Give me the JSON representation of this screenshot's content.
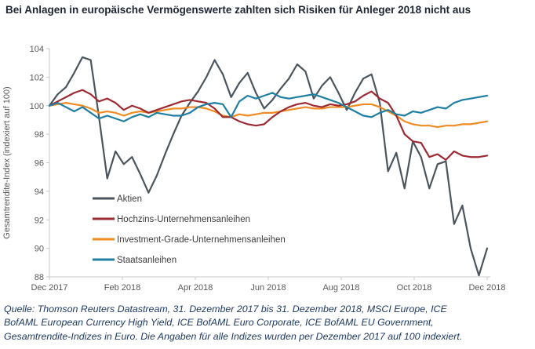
{
  "title": "Bei Anlagen in europäische Vermögenswerte zahlten sich Risiken für Anleger 2018 nicht aus",
  "source": {
    "lines": [
      "Quelle: Thomson Reuters Datastream, 31. Dezember 2017 bis 31. Dezember 2018, MSCI Europe, ICE",
      "BofAML European Currency High Yield, ICE BofAML Euro Corporate, ICE BofAML EU Government,",
      "Gesamtrendite-Indizes in Euro.  Die Angaben für alle Indizes wurden per Dezember 2017 auf 100 indexiert."
    ]
  },
  "colors": {
    "title_text": "#1e2533",
    "source_text": "#1f3a63",
    "axis_line": "#c9c9c9",
    "tick_label": "#595959",
    "legend_label": "#3d3d3d"
  },
  "chart_data": {
    "type": "line",
    "title": "Bei Anlagen in europäische Vermögenswerte zahlten sich Risiken für Anleger 2018 nicht aus",
    "xlabel": "",
    "ylabel": "Gesamtrendite-Index (indexiert auf 100)",
    "ylim": [
      88,
      104
    ],
    "ytick_step": 2,
    "x_tick_labels": [
      "Dec 2017",
      "Feb 2018",
      "Apr 2018",
      "Jun 2018",
      "Aug 2018",
      "Oct 2018",
      "Dec 2018"
    ],
    "x_unit": "weekly points from 31. Dezember 2017 to 31. Dezember 2018",
    "grid": false,
    "legend_position": "inside-lower-left",
    "series": [
      {
        "name": "Aktien",
        "color": "#4b555d",
        "values": [
          100.0,
          100.8,
          101.3,
          102.3,
          103.4,
          103.2,
          99.2,
          94.9,
          96.8,
          95.9,
          96.4,
          95.2,
          93.9,
          95.1,
          96.6,
          98.0,
          99.3,
          100.2,
          101.0,
          102.0,
          103.2,
          102.2,
          100.6,
          101.6,
          102.3,
          100.9,
          99.8,
          100.4,
          101.2,
          101.9,
          102.9,
          102.4,
          100.5,
          101.4,
          102.0,
          100.9,
          99.7,
          100.9,
          101.9,
          102.2,
          100.2,
          95.4,
          96.7,
          94.2,
          97.5,
          96.4,
          94.2,
          95.9,
          96.1,
          91.7,
          93.0,
          90.0,
          88.1,
          90.0
        ]
      },
      {
        "name": "Hochzins-Unternehmensanleihen",
        "color": "#9e2b33",
        "values": [
          100.0,
          100.3,
          100.6,
          100.9,
          101.1,
          100.8,
          100.3,
          100.5,
          100.2,
          99.7,
          100.0,
          99.8,
          99.5,
          99.7,
          99.9,
          100.1,
          100.3,
          100.4,
          100.3,
          100.2,
          99.8,
          99.2,
          99.2,
          98.9,
          98.7,
          98.6,
          98.7,
          99.2,
          99.6,
          99.9,
          100.1,
          100.2,
          100.0,
          99.9,
          100.1,
          100.0,
          100.1,
          100.3,
          100.7,
          101.0,
          100.5,
          100.2,
          99.3,
          98.0,
          97.5,
          97.4,
          96.4,
          96.6,
          96.2,
          96.8,
          96.5,
          96.4,
          96.4,
          96.5
        ]
      },
      {
        "name": "Investment-Grade-Unternehmensanleihen",
        "color": "#ef8b22",
        "values": [
          100.0,
          100.1,
          100.2,
          100.1,
          100.0,
          99.8,
          99.5,
          99.6,
          99.5,
          99.3,
          99.5,
          99.6,
          99.5,
          99.6,
          99.7,
          99.8,
          99.8,
          99.9,
          99.9,
          99.8,
          99.6,
          99.3,
          99.2,
          99.4,
          99.3,
          99.4,
          99.5,
          99.5,
          99.6,
          99.7,
          99.8,
          99.9,
          99.8,
          99.8,
          99.9,
          99.9,
          99.9,
          100.0,
          100.1,
          100.1,
          99.9,
          99.6,
          99.3,
          98.9,
          98.7,
          98.6,
          98.6,
          98.5,
          98.6,
          98.6,
          98.7,
          98.7,
          98.8,
          98.9
        ]
      },
      {
        "name": "Staatsanleihen",
        "color": "#1f7fa3",
        "values": [
          100.0,
          100.2,
          99.9,
          99.6,
          99.9,
          99.5,
          99.1,
          99.3,
          99.1,
          98.9,
          99.2,
          99.4,
          99.2,
          99.5,
          99.4,
          99.3,
          99.3,
          99.5,
          99.9,
          100.1,
          100.2,
          100.1,
          99.2,
          100.3,
          100.7,
          100.5,
          100.7,
          100.9,
          100.6,
          100.5,
          100.6,
          100.7,
          100.8,
          100.6,
          100.4,
          100.2,
          99.9,
          99.6,
          99.3,
          99.2,
          99.5,
          99.7,
          99.4,
          99.3,
          99.6,
          99.5,
          99.7,
          99.9,
          99.8,
          100.2,
          100.4,
          100.5,
          100.6,
          100.7
        ]
      }
    ]
  }
}
